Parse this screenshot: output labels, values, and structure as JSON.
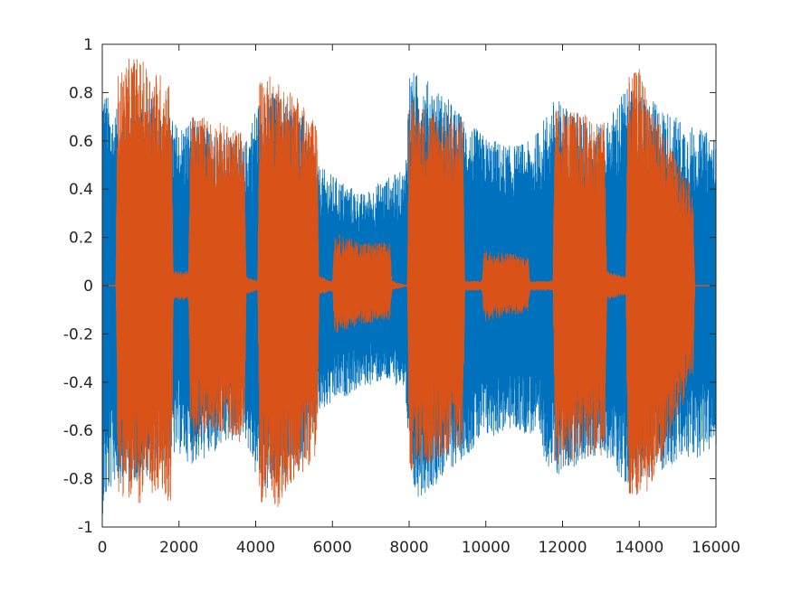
{
  "chart_data": {
    "type": "line",
    "title": "",
    "xlabel": "",
    "ylabel": "",
    "xlim": [
      0,
      16000
    ],
    "ylim": [
      -1,
      1
    ],
    "x_ticks": [
      0,
      2000,
      4000,
      6000,
      8000,
      10000,
      12000,
      14000,
      16000
    ],
    "y_ticks": [
      -1,
      -0.8,
      -0.6,
      -0.4,
      -0.2,
      0,
      0.2,
      0.4,
      0.6,
      0.8,
      1
    ],
    "grid": false,
    "legend": "none",
    "series": [
      {
        "color": "#0072BD",
        "envelope": [
          {
            "x": 0,
            "upper": 0.85,
            "lower": -0.95
          },
          {
            "x": 300,
            "upper": 0.72,
            "lower": -0.82
          },
          {
            "x": 800,
            "upper": 0.8,
            "lower": -0.82
          },
          {
            "x": 1300,
            "upper": 0.78,
            "lower": -0.78
          },
          {
            "x": 1800,
            "upper": 0.7,
            "lower": -0.72
          },
          {
            "x": 2000,
            "upper": 0.66,
            "lower": -0.7
          },
          {
            "x": 2300,
            "upper": 0.7,
            "lower": -0.74
          },
          {
            "x": 2800,
            "upper": 0.66,
            "lower": -0.72
          },
          {
            "x": 3300,
            "upper": 0.62,
            "lower": -0.66
          },
          {
            "x": 3700,
            "upper": 0.58,
            "lower": -0.62
          },
          {
            "x": 4000,
            "upper": 0.75,
            "lower": -0.8
          },
          {
            "x": 4300,
            "upper": 0.82,
            "lower": -0.86
          },
          {
            "x": 4800,
            "upper": 0.78,
            "lower": -0.8
          },
          {
            "x": 5300,
            "upper": 0.7,
            "lower": -0.72
          },
          {
            "x": 5600,
            "upper": 0.5,
            "lower": -0.55
          },
          {
            "x": 6100,
            "upper": 0.45,
            "lower": -0.48
          },
          {
            "x": 6800,
            "upper": 0.38,
            "lower": -0.42
          },
          {
            "x": 7300,
            "upper": 0.44,
            "lower": -0.4
          },
          {
            "x": 7900,
            "upper": 0.48,
            "lower": -0.42
          },
          {
            "x": 8000,
            "upper": 0.9,
            "lower": -0.9
          },
          {
            "x": 8500,
            "upper": 0.85,
            "lower": -0.85
          },
          {
            "x": 9000,
            "upper": 0.78,
            "lower": -0.78
          },
          {
            "x": 9500,
            "upper": 0.68,
            "lower": -0.7
          },
          {
            "x": 10000,
            "upper": 0.62,
            "lower": -0.64
          },
          {
            "x": 10600,
            "upper": 0.58,
            "lower": -0.6
          },
          {
            "x": 11200,
            "upper": 0.6,
            "lower": -0.62
          },
          {
            "x": 11800,
            "upper": 0.78,
            "lower": -0.8
          },
          {
            "x": 12400,
            "upper": 0.72,
            "lower": -0.74
          },
          {
            "x": 13100,
            "upper": 0.66,
            "lower": -0.7
          },
          {
            "x": 13600,
            "upper": 0.82,
            "lower": -0.82
          },
          {
            "x": 14200,
            "upper": 0.78,
            "lower": -0.8
          },
          {
            "x": 14800,
            "upper": 0.72,
            "lower": -0.75
          },
          {
            "x": 15400,
            "upper": 0.66,
            "lower": -0.72
          },
          {
            "x": 16000,
            "upper": 0.62,
            "lower": -0.68
          }
        ]
      },
      {
        "color": "#D95319",
        "envelope": [
          {
            "x": 0,
            "upper": 0.0,
            "lower": 0.0
          },
          {
            "x": 350,
            "upper": 0.0,
            "lower": 0.0
          },
          {
            "x": 400,
            "upper": 0.88,
            "lower": -0.85
          },
          {
            "x": 800,
            "upper": 0.96,
            "lower": -0.92
          },
          {
            "x": 1300,
            "upper": 0.9,
            "lower": -0.88
          },
          {
            "x": 1800,
            "upper": 0.86,
            "lower": -0.9
          },
          {
            "x": 1850,
            "upper": 0.06,
            "lower": -0.06
          },
          {
            "x": 2250,
            "upper": 0.06,
            "lower": -0.06
          },
          {
            "x": 2300,
            "upper": 0.72,
            "lower": -0.7
          },
          {
            "x": 2800,
            "upper": 0.7,
            "lower": -0.6
          },
          {
            "x": 3300,
            "upper": 0.66,
            "lower": -0.62
          },
          {
            "x": 3700,
            "upper": 0.64,
            "lower": -0.66
          },
          {
            "x": 3750,
            "upper": 0.04,
            "lower": -0.04
          },
          {
            "x": 4050,
            "upper": 0.02,
            "lower": -0.02
          },
          {
            "x": 4100,
            "upper": 0.88,
            "lower": -0.9
          },
          {
            "x": 4600,
            "upper": 0.86,
            "lower": -0.92
          },
          {
            "x": 5100,
            "upper": 0.78,
            "lower": -0.8
          },
          {
            "x": 5600,
            "upper": 0.66,
            "lower": -0.7
          },
          {
            "x": 5650,
            "upper": 0.04,
            "lower": -0.04
          },
          {
            "x": 6000,
            "upper": 0.02,
            "lower": -0.02
          },
          {
            "x": 6050,
            "upper": 0.22,
            "lower": -0.2
          },
          {
            "x": 6800,
            "upper": 0.18,
            "lower": -0.16
          },
          {
            "x": 7500,
            "upper": 0.18,
            "lower": -0.14
          },
          {
            "x": 7550,
            "upper": 0.02,
            "lower": -0.02
          },
          {
            "x": 7950,
            "upper": 0.0,
            "lower": 0.0
          },
          {
            "x": 8000,
            "upper": 0.78,
            "lower": -0.78
          },
          {
            "x": 8500,
            "upper": 0.74,
            "lower": -0.74
          },
          {
            "x": 9000,
            "upper": 0.72,
            "lower": -0.7
          },
          {
            "x": 9400,
            "upper": 0.7,
            "lower": -0.68
          },
          {
            "x": 9450,
            "upper": 0.02,
            "lower": -0.02
          },
          {
            "x": 9900,
            "upper": 0.02,
            "lower": -0.02
          },
          {
            "x": 9950,
            "upper": 0.15,
            "lower": -0.15
          },
          {
            "x": 10500,
            "upper": 0.14,
            "lower": -0.13
          },
          {
            "x": 11100,
            "upper": 0.12,
            "lower": -0.11
          },
          {
            "x": 11150,
            "upper": 0.02,
            "lower": -0.02
          },
          {
            "x": 11750,
            "upper": 0.02,
            "lower": -0.02
          },
          {
            "x": 11800,
            "upper": 0.74,
            "lower": -0.76
          },
          {
            "x": 12400,
            "upper": 0.72,
            "lower": -0.72
          },
          {
            "x": 13100,
            "upper": 0.68,
            "lower": -0.7
          },
          {
            "x": 13150,
            "upper": 0.06,
            "lower": -0.06
          },
          {
            "x": 13650,
            "upper": 0.04,
            "lower": -0.04
          },
          {
            "x": 13700,
            "upper": 0.86,
            "lower": -0.86
          },
          {
            "x": 14000,
            "upper": 0.9,
            "lower": -0.92
          },
          {
            "x": 14500,
            "upper": 0.7,
            "lower": -0.76
          },
          {
            "x": 15000,
            "upper": 0.52,
            "lower": -0.56
          },
          {
            "x": 15400,
            "upper": 0.4,
            "lower": -0.38
          },
          {
            "x": 15450,
            "upper": 0.0,
            "lower": 0.0
          },
          {
            "x": 16000,
            "upper": 0.0,
            "lower": 0.0
          }
        ]
      }
    ],
    "colors": {
      "axis": "#262626",
      "background": "#ffffff"
    }
  }
}
